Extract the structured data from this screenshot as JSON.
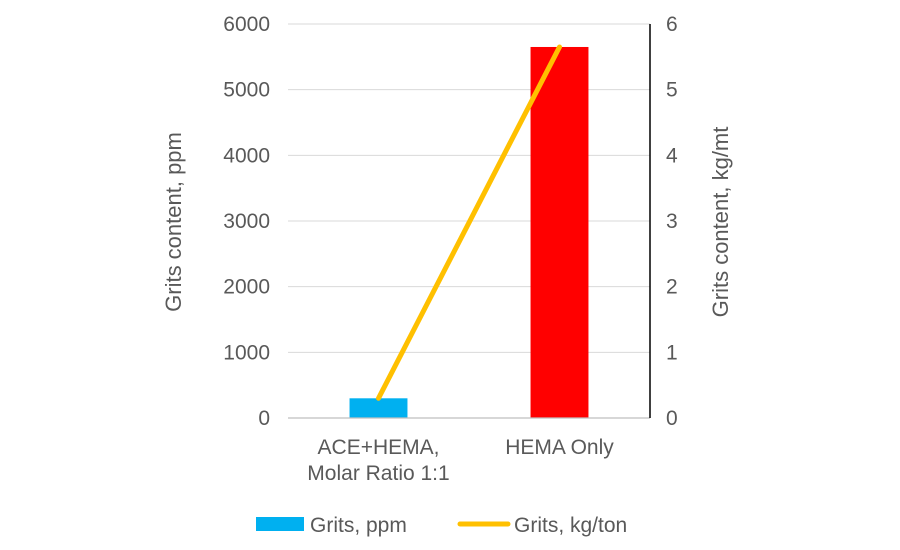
{
  "chart_data": {
    "type": "bar",
    "categories": [
      [
        "ACE+HEMA,",
        "Molar Ratio 1:1"
      ],
      [
        "HEMA Only"
      ]
    ],
    "series": [
      {
        "name": "Grits, ppm",
        "kind": "bar",
        "axis": "left",
        "color": "#00B0F0",
        "point_colors": [
          "#00B0F0",
          "#FF0000"
        ],
        "values": [
          300,
          5650
        ]
      },
      {
        "name": "Grits, kg/ton",
        "kind": "line",
        "axis": "right",
        "color": "#FFC000",
        "values": [
          0.3,
          5.65
        ]
      }
    ],
    "ylabel": "Grits content, ppm",
    "y2label": "Grits content, kg/mt",
    "ylim": [
      0,
      6000
    ],
    "y2lim": [
      0,
      6
    ],
    "yticks": [
      "0",
      "1000",
      "2000",
      "3000",
      "4000",
      "5000",
      "6000"
    ],
    "y2ticks": [
      "0",
      "1",
      "2",
      "3",
      "4",
      "5",
      "6"
    ],
    "grid": true,
    "legend_position": "bottom"
  }
}
